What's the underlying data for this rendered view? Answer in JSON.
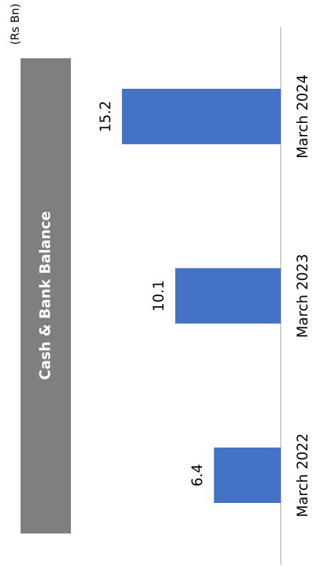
{
  "chart_data": {
    "type": "bar",
    "title": "Cash & Bank Balance",
    "unit_label": "(Rs Bn)",
    "categories": [
      "March 2022",
      "March 2023",
      "March 2024"
    ],
    "values": [
      6.4,
      10.1,
      15.2
    ],
    "color": "#4472c4"
  }
}
